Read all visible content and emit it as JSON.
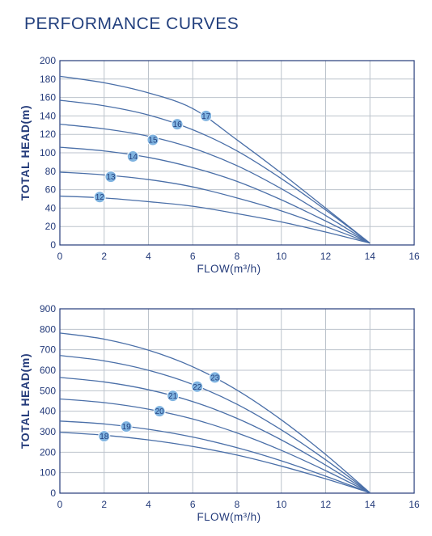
{
  "page": {
    "title": "PERFORMANCE CURVES"
  },
  "colors": {
    "curve": "#4a6fa8",
    "grid": "#bcc3cc",
    "axis": "#243b7a",
    "badge_fill": "#7fb3e0",
    "text": "#243b7a"
  },
  "chart_data": [
    {
      "type": "line",
      "title": "",
      "xlabel": "FLOW(m³/h)",
      "ylabel": "TOTAL HEAD(m)",
      "xlim": [
        0,
        16
      ],
      "ylim": [
        0,
        200
      ],
      "xticks": [
        0,
        2,
        4,
        6,
        8,
        10,
        12,
        14,
        16
      ],
      "yticks": [
        0,
        20,
        40,
        60,
        80,
        100,
        120,
        140,
        160,
        180,
        200
      ],
      "grid": true,
      "series": [
        {
          "name": "12",
          "label_at": [
            1.8,
            52
          ],
          "points": [
            [
              0,
              53
            ],
            [
              2,
              51
            ],
            [
              4,
              47
            ],
            [
              6,
              42
            ],
            [
              8,
              34
            ],
            [
              10,
              25
            ],
            [
              12,
              14
            ],
            [
              14,
              2
            ]
          ]
        },
        {
          "name": "13",
          "label_at": [
            2.3,
            74
          ],
          "points": [
            [
              0,
              79
            ],
            [
              2,
              76
            ],
            [
              4,
              71
            ],
            [
              6,
              63
            ],
            [
              8,
              51
            ],
            [
              10,
              37
            ],
            [
              12,
              20
            ],
            [
              14,
              2
            ]
          ]
        },
        {
          "name": "14",
          "label_at": [
            3.3,
            96
          ],
          "points": [
            [
              0,
              106
            ],
            [
              2,
              102
            ],
            [
              4,
              95
            ],
            [
              6,
              84
            ],
            [
              8,
              69
            ],
            [
              10,
              49
            ],
            [
              12,
              26
            ],
            [
              14,
              2
            ]
          ]
        },
        {
          "name": "15",
          "label_at": [
            4.2,
            114
          ],
          "points": [
            [
              0,
              131
            ],
            [
              2,
              126
            ],
            [
              4,
              118
            ],
            [
              6,
              105
            ],
            [
              8,
              86
            ],
            [
              10,
              61
            ],
            [
              12,
              32
            ],
            [
              14,
              2
            ]
          ]
        },
        {
          "name": "16",
          "label_at": [
            5.3,
            131
          ],
          "points": [
            [
              0,
              157
            ],
            [
              2,
              151
            ],
            [
              4,
              141
            ],
            [
              6,
              125
            ],
            [
              8,
              102
            ],
            [
              10,
              72
            ],
            [
              12,
              38
            ],
            [
              14,
              2
            ]
          ]
        },
        {
          "name": "17",
          "label_at": [
            6.6,
            140
          ],
          "points": [
            [
              0,
              183
            ],
            [
              2,
              176
            ],
            [
              4,
              165
            ],
            [
              6,
              148
            ],
            [
              8,
              114
            ],
            [
              10,
              78
            ],
            [
              12,
              40
            ],
            [
              14,
              2
            ]
          ]
        }
      ]
    },
    {
      "type": "line",
      "title": "",
      "xlabel": "FLOW(m³/h)",
      "ylabel": "TOTAL HEAD(m)",
      "xlim": [
        0,
        16
      ],
      "ylim": [
        0,
        900
      ],
      "xticks": [
        0,
        2,
        4,
        6,
        8,
        10,
        12,
        14,
        16
      ],
      "yticks": [
        0,
        100,
        200,
        300,
        400,
        500,
        600,
        700,
        800,
        900
      ],
      "grid": true,
      "series": [
        {
          "name": "18",
          "label_at": [
            2.0,
            278
          ],
          "points": [
            [
              0,
              297
            ],
            [
              2,
              283
            ],
            [
              4,
              260
            ],
            [
              6,
              228
            ],
            [
              8,
              186
            ],
            [
              10,
              132
            ],
            [
              12,
              70
            ],
            [
              14,
              2
            ]
          ]
        },
        {
          "name": "19",
          "label_at": [
            3.0,
            325
          ],
          "points": [
            [
              0,
              352
            ],
            [
              2,
              338
            ],
            [
              4,
              312
            ],
            [
              6,
              274
            ],
            [
              8,
              222
            ],
            [
              10,
              158
            ],
            [
              12,
              83
            ],
            [
              14,
              2
            ]
          ]
        },
        {
          "name": "20",
          "label_at": [
            4.5,
            400
          ],
          "points": [
            [
              0,
              460
            ],
            [
              2,
              442
            ],
            [
              4,
              410
            ],
            [
              6,
              362
            ],
            [
              8,
              294
            ],
            [
              10,
              209
            ],
            [
              12,
              110
            ],
            [
              14,
              2
            ]
          ]
        },
        {
          "name": "21",
          "label_at": [
            5.1,
            475
          ],
          "points": [
            [
              0,
              565
            ],
            [
              2,
              543
            ],
            [
              4,
              505
            ],
            [
              6,
              447
            ],
            [
              8,
              365
            ],
            [
              10,
              260
            ],
            [
              12,
              137
            ],
            [
              14,
              2
            ]
          ]
        },
        {
          "name": "22",
          "label_at": [
            6.2,
            520
          ],
          "points": [
            [
              0,
              672
            ],
            [
              2,
              646
            ],
            [
              4,
              600
            ],
            [
              6,
              531
            ],
            [
              8,
              434
            ],
            [
              10,
              309
            ],
            [
              12,
              163
            ],
            [
              14,
              2
            ]
          ]
        },
        {
          "name": "23",
          "label_at": [
            7.0,
            565
          ],
          "points": [
            [
              0,
              782
            ],
            [
              2,
              752
            ],
            [
              4,
              698
            ],
            [
              6,
              617
            ],
            [
              8,
              503
            ],
            [
              10,
              358
            ],
            [
              12,
              189
            ],
            [
              14,
              2
            ]
          ]
        }
      ]
    }
  ]
}
